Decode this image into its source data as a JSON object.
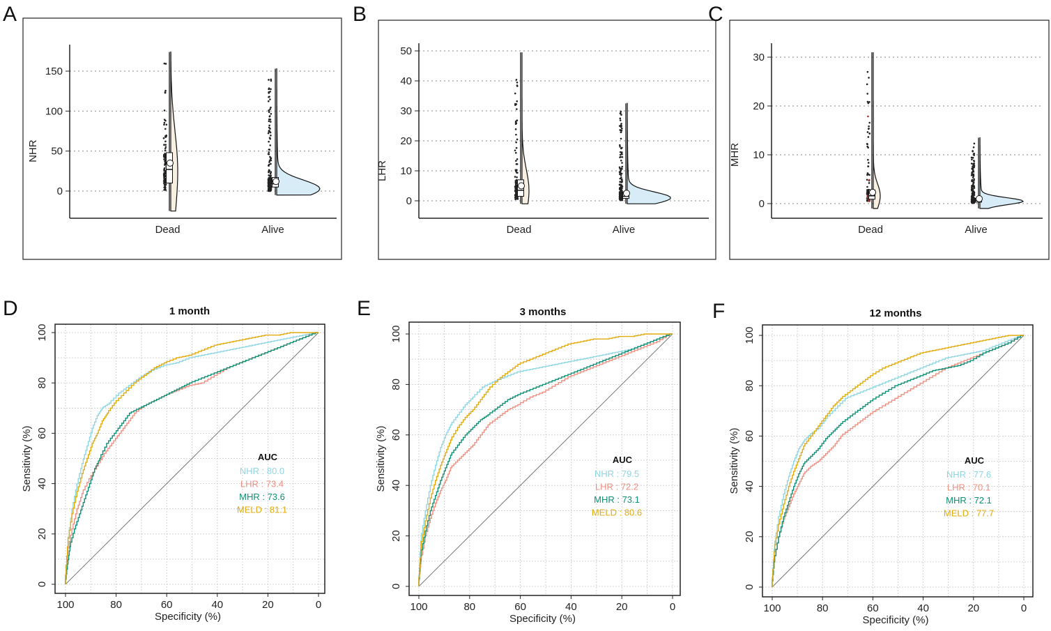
{
  "panel_letters": [
    "A",
    "B",
    "C",
    "D",
    "E",
    "F"
  ],
  "colors": {
    "NHR": "#8fd6e3",
    "LHR": "#ef8f80",
    "MHR": "#0f8f73",
    "MELD": "#e3aa0c",
    "violin_fill": "#d7ecf7",
    "grid": "#c9c9c9"
  },
  "chart_data": [
    {
      "type": "raincloud",
      "panel": "A",
      "title": "",
      "ylabel": "NHR",
      "xlabel": "",
      "ylim": [
        -28,
        180
      ],
      "yticks": [
        0,
        50,
        100,
        150
      ],
      "groups": [
        {
          "name": "Dead",
          "box": {
            "min": 1,
            "q1": 10,
            "median": 27,
            "q3": 48,
            "max": 102
          },
          "mean": 35,
          "range": [
            -25,
            174
          ]
        },
        {
          "name": "Alive",
          "box": {
            "min": 0,
            "q1": 5,
            "median": 9,
            "q3": 17,
            "max": 30
          },
          "mean": 12,
          "range": [
            -5,
            153
          ],
          "mode": 3
        }
      ]
    },
    {
      "type": "raincloud",
      "panel": "B",
      "title": "",
      "ylabel": "LHR",
      "xlabel": "",
      "ylim": [
        -6,
        52
      ],
      "yticks": [
        0,
        10,
        20,
        30,
        40,
        50
      ],
      "groups": [
        {
          "name": "Dead",
          "box": {
            "min": 0.5,
            "q1": 1.5,
            "median": 3.5,
            "q3": 7,
            "max": 15.5
          },
          "mean": 5,
          "range": [
            -1,
            49.5
          ]
        },
        {
          "name": "Alive",
          "box": {
            "min": 0.2,
            "q1": 0.8,
            "median": 1.5,
            "q3": 3,
            "max": 6
          },
          "mean": 2.5,
          "range": [
            -1,
            32.5
          ],
          "mode": 1
        }
      ]
    },
    {
      "type": "raincloud",
      "panel": "C",
      "title": "",
      "ylabel": "MHR",
      "xlabel": "",
      "ylim": [
        -4,
        32
      ],
      "yticks": [
        0,
        10,
        20,
        30
      ],
      "groups": [
        {
          "name": "Dead",
          "box": {
            "min": 0.3,
            "q1": 0.9,
            "median": 1.6,
            "q3": 2.8,
            "max": 6.2
          },
          "mean": 2.3,
          "range": [
            -1,
            31
          ]
        },
        {
          "name": "Alive",
          "box": {
            "min": 0.1,
            "q1": 0.3,
            "median": 0.6,
            "q3": 1.1,
            "max": 2.4
          },
          "mean": 1,
          "range": [
            -1,
            13.5
          ],
          "mode": 0.5
        }
      ]
    },
    {
      "type": "line",
      "panel": "D",
      "title": "1 month",
      "xlabel": "Specificity (%)",
      "ylabel": "Sensitivity (%)",
      "xlim": [
        100,
        0
      ],
      "ylim": [
        0,
        100
      ],
      "xticks": [
        100,
        80,
        60,
        40,
        20,
        0
      ],
      "yticks": [
        0,
        20,
        40,
        60,
        80,
        100
      ],
      "legend_title": "AUC",
      "series": [
        {
          "name": "NHR",
          "auc": "80.0",
          "x": [
            100,
            99,
            97,
            95,
            93,
            91,
            89,
            87,
            85,
            82,
            78,
            74,
            70,
            65,
            60,
            55,
            50,
            45,
            40,
            35,
            30,
            25,
            20,
            15,
            10,
            5,
            0
          ],
          "y": [
            0,
            15,
            30,
            40,
            48,
            55,
            62,
            67,
            70,
            72,
            76,
            79,
            82,
            85,
            87,
            88,
            90,
            91,
            92,
            93,
            94,
            95,
            96,
            97,
            98,
            99,
            100
          ]
        },
        {
          "name": "LHR",
          "auc": "73.4",
          "x": [
            100,
            99,
            97,
            95,
            93,
            90,
            87,
            84,
            81,
            78,
            75,
            72,
            68,
            64,
            60,
            55,
            50,
            45,
            40,
            35,
            30,
            25,
            20,
            15,
            10,
            5,
            0
          ],
          "y": [
            0,
            12,
            22,
            30,
            36,
            42,
            47,
            52,
            56,
            60,
            64,
            68,
            71,
            73,
            75,
            77,
            79,
            80,
            83,
            86,
            88,
            90,
            92,
            94,
            96,
            98,
            100
          ]
        },
        {
          "name": "MHR",
          "auc": "73.6",
          "x": [
            100,
            99,
            98,
            96,
            94,
            92,
            90,
            88,
            86,
            83,
            80,
            77,
            74,
            70,
            66,
            62,
            58,
            54,
            50,
            45,
            40,
            35,
            30,
            25,
            20,
            15,
            10,
            5,
            0
          ],
          "y": [
            0,
            8,
            15,
            22,
            28,
            34,
            40,
            46,
            50,
            56,
            60,
            64,
            68,
            70,
            72,
            74,
            76,
            78,
            80,
            82,
            84,
            86,
            88,
            90,
            92,
            94,
            96,
            98,
            100
          ]
        },
        {
          "name": "MELD",
          "auc": "81.1",
          "x": [
            100,
            99,
            97,
            95,
            93,
            91,
            89,
            87,
            85,
            83,
            80,
            76,
            72,
            68,
            64,
            60,
            55,
            50,
            45,
            40,
            35,
            30,
            25,
            20,
            15,
            10,
            5,
            0
          ],
          "y": [
            0,
            15,
            28,
            37,
            44,
            50,
            56,
            60,
            65,
            68,
            72,
            76,
            80,
            83,
            86,
            88,
            90,
            91,
            93,
            95,
            96,
            97,
            98,
            99,
            99,
            100,
            100,
            100
          ]
        }
      ]
    },
    {
      "type": "line",
      "panel": "E",
      "title": "3 months",
      "xlabel": "Specificity (%)",
      "ylabel": "Sensitivity (%)",
      "xlim": [
        100,
        0
      ],
      "ylim": [
        0,
        100
      ],
      "xticks": [
        100,
        80,
        60,
        40,
        20,
        0
      ],
      "yticks": [
        0,
        20,
        40,
        60,
        80,
        100
      ],
      "legend_title": "AUC",
      "series": [
        {
          "name": "NHR",
          "auc": "79.5",
          "x": [
            100,
            99,
            97,
            95,
            93,
            91,
            89,
            87,
            84,
            81,
            78,
            74,
            70,
            65,
            60,
            55,
            50,
            45,
            40,
            35,
            30,
            25,
            20,
            15,
            10,
            5,
            0
          ],
          "y": [
            0,
            18,
            30,
            40,
            48,
            55,
            60,
            64,
            68,
            72,
            75,
            79,
            81,
            83,
            85,
            86,
            87,
            88,
            89,
            90,
            91,
            92,
            93,
            94,
            96,
            98,
            100
          ]
        },
        {
          "name": "LHR",
          "auc": "72.2",
          "x": [
            100,
            99,
            97,
            95,
            93,
            91,
            89,
            87,
            84,
            81,
            78,
            75,
            72,
            68,
            64,
            60,
            55,
            50,
            45,
            40,
            35,
            30,
            25,
            20,
            15,
            10,
            5,
            0
          ],
          "y": [
            0,
            10,
            20,
            27,
            33,
            38,
            42,
            47,
            50,
            53,
            56,
            60,
            64,
            67,
            70,
            72,
            75,
            77,
            80,
            83,
            85,
            87,
            89,
            91,
            93,
            95,
            97,
            100
          ]
        },
        {
          "name": "MHR",
          "auc": "73.1",
          "x": [
            100,
            99,
            97,
            95,
            93,
            91,
            89,
            87,
            84,
            81,
            78,
            75,
            72,
            68,
            64,
            60,
            55,
            50,
            45,
            40,
            35,
            30,
            25,
            20,
            15,
            10,
            5,
            0
          ],
          "y": [
            0,
            12,
            22,
            30,
            36,
            42,
            47,
            52,
            56,
            60,
            63,
            66,
            68,
            71,
            74,
            76,
            78,
            80,
            82,
            84,
            86,
            88,
            90,
            92,
            94,
            96,
            98,
            100
          ]
        },
        {
          "name": "MELD",
          "auc": "80.6",
          "x": [
            100,
            99,
            97,
            95,
            93,
            91,
            89,
            87,
            84,
            81,
            78,
            75,
            72,
            68,
            64,
            60,
            55,
            50,
            45,
            40,
            35,
            30,
            25,
            20,
            15,
            10,
            5,
            0
          ],
          "y": [
            0,
            15,
            26,
            35,
            42,
            48,
            53,
            58,
            63,
            67,
            70,
            74,
            78,
            82,
            85,
            88,
            90,
            92,
            94,
            96,
            97,
            98,
            98,
            99,
            99,
            100,
            100,
            100
          ]
        }
      ]
    },
    {
      "type": "line",
      "panel": "F",
      "title": "12 months",
      "xlabel": "Specificity (%)",
      "ylabel": "Sensitivity (%)",
      "xlim": [
        100,
        0
      ],
      "ylim": [
        0,
        100
      ],
      "xticks": [
        100,
        80,
        60,
        40,
        20,
        0
      ],
      "yticks": [
        0,
        20,
        40,
        60,
        80,
        100
      ],
      "legend_title": "AUC",
      "series": [
        {
          "name": "NHR",
          "auc": "77.6",
          "x": [
            100,
            99,
            97,
            95,
            93,
            91,
            89,
            87,
            84,
            81,
            78,
            74,
            70,
            65,
            60,
            55,
            50,
            45,
            40,
            35,
            30,
            25,
            20,
            15,
            10,
            5,
            0
          ],
          "y": [
            0,
            15,
            28,
            37,
            44,
            50,
            55,
            58,
            61,
            63,
            67,
            71,
            75,
            77,
            79,
            81,
            83,
            85,
            87,
            89,
            91,
            92,
            93,
            94,
            96,
            98,
            100
          ]
        },
        {
          "name": "LHR",
          "auc": "70.1",
          "x": [
            100,
            99,
            97,
            95,
            93,
            91,
            89,
            87,
            84,
            81,
            78,
            75,
            72,
            68,
            64,
            60,
            55,
            50,
            45,
            40,
            35,
            30,
            25,
            20,
            15,
            10,
            5,
            0
          ],
          "y": [
            0,
            10,
            20,
            27,
            32,
            37,
            41,
            45,
            48,
            50,
            53,
            56,
            60,
            63,
            66,
            69,
            72,
            75,
            78,
            81,
            84,
            87,
            89,
            91,
            93,
            95,
            97,
            100
          ]
        },
        {
          "name": "MHR",
          "auc": "72.1",
          "x": [
            100,
            99,
            97,
            95,
            93,
            91,
            89,
            87,
            84,
            81,
            78,
            75,
            72,
            68,
            64,
            60,
            55,
            50,
            45,
            40,
            35,
            30,
            25,
            20,
            15,
            10,
            5,
            0
          ],
          "y": [
            0,
            10,
            20,
            28,
            34,
            40,
            45,
            49,
            52,
            55,
            59,
            62,
            65,
            68,
            71,
            74,
            77,
            80,
            82,
            84,
            86,
            87,
            88,
            90,
            93,
            95,
            97,
            100
          ]
        },
        {
          "name": "MELD",
          "auc": "77.7",
          "x": [
            100,
            99,
            97,
            95,
            93,
            91,
            89,
            87,
            84,
            81,
            78,
            75,
            72,
            68,
            64,
            60,
            55,
            50,
            45,
            40,
            35,
            30,
            25,
            20,
            15,
            10,
            5,
            0
          ],
          "y": [
            0,
            14,
            25,
            33,
            40,
            46,
            51,
            56,
            60,
            64,
            68,
            72,
            75,
            78,
            81,
            84,
            87,
            89,
            91,
            93,
            94,
            95,
            96,
            97,
            98,
            99,
            100,
            100
          ]
        }
      ]
    }
  ]
}
